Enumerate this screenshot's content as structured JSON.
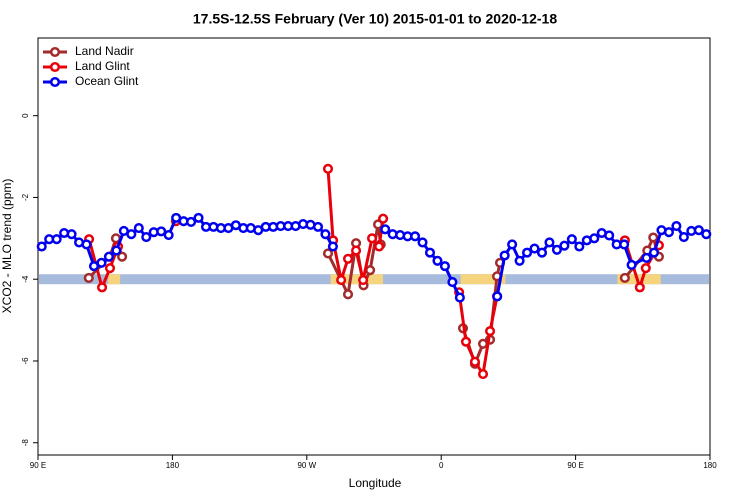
{
  "chart_data": {
    "type": "line",
    "title": "17.5S-12.5S February (Ver 10)   2015-01-01 to 2020-12-18",
    "xlabel": "Longitude",
    "ylabel": "XCO2 - MLO trend (ppm)",
    "xlim": [
      90,
      540
    ],
    "xticks": [
      {
        "value": 90,
        "label": "90 E"
      },
      180,
      {
        "value": 270,
        "label": "90 W"
      },
      {
        "value": 360,
        "label": "0"
      },
      {
        "value": 450,
        "label": "90 E"
      },
      {
        "value": 540,
        "label": "180"
      }
    ],
    "ylim": [
      -8.3,
      1.9
    ],
    "yticks": [
      0,
      -2,
      -4,
      -6,
      -8
    ],
    "legend": "upper left",
    "band_level": -4,
    "band_color": "#a7bbdc",
    "land_color": "#f6d47e",
    "land_ranges": [
      [
        137,
        145
      ],
      [
        286,
        321
      ],
      [
        373,
        403
      ],
      [
        478,
        507
      ]
    ],
    "series": [
      {
        "name": "Land Nadir",
        "color": "#a32b2b",
        "x": [
          124,
          138.2,
          142.2,
          146.3,
          null,
          284.2,
          297.6,
          303,
          308,
          312.4,
          317.7,
          319.5,
          null,
          374.6,
          382.6,
          388,
          392.7,
          397.4,
          399.4,
          null,
          483,
          498,
          502,
          505.8
        ],
        "values": [
          -3.97,
          -3.45,
          -3.0,
          -3.45,
          null,
          -3.37,
          -4.37,
          -3.12,
          -4.15,
          -3.78,
          -2.66,
          -3.15,
          null,
          -5.2,
          -6.07,
          -5.58,
          -5.48,
          -3.93,
          -3.6,
          null,
          -3.97,
          -3.3,
          -2.98,
          -3.45
        ]
      },
      {
        "name": "Land Glint",
        "color": "#e8000b",
        "x": [
          124.2,
          132.9,
          138.2,
          143.6,
          null,
          182.4,
          null,
          284.2,
          287.6,
          293,
          297.6,
          303,
          307.7,
          313.7,
          318.4,
          321.1,
          null,
          372,
          376.6,
          382.6,
          388,
          392.7,
          397.4,
          null,
          483,
          493,
          497,
          505.8
        ],
        "values": [
          -3.02,
          -4.2,
          -3.73,
          -3.2,
          null,
          -2.58,
          null,
          -1.3,
          -3.05,
          -4.02,
          -3.5,
          -3.3,
          -4.02,
          -3.0,
          -3.2,
          -2.52,
          null,
          -4.32,
          -5.53,
          -6.02,
          -6.32,
          -5.27,
          -4.42,
          null,
          -3.05,
          -4.2,
          -3.73,
          -3.17
        ]
      },
      {
        "name": "Ocean Glint",
        "color": "#0000ee",
        "x": [
          92.5,
          97.5,
          102.5,
          107.5,
          112.5,
          117.5,
          122.5,
          127.5,
          132.5,
          137.5,
          142.5,
          147.5,
          152.5,
          157.5,
          162.5,
          167.5,
          172.5,
          177.5,
          182.5,
          187.5,
          192.5,
          197.5,
          202.5,
          207.5,
          212.5,
          217.5,
          222.5,
          227.5,
          232.5,
          237.5,
          242.5,
          247.5,
          252.5,
          257.5,
          262.5,
          267.5,
          272.5,
          277.5,
          282.5,
          287.5,
          null,
          322.5,
          327.5,
          332.5,
          337.5,
          342.5,
          347.5,
          352.5,
          357.5,
          362.5,
          367.5,
          372.5,
          null,
          397.5,
          402.5,
          407.5,
          412.5,
          417.5,
          422.5,
          427.5,
          432.5,
          437.5,
          442.5,
          447.5,
          452.5,
          457.5,
          462.5,
          467.5,
          472.5,
          477.5,
          482.5,
          487.5,
          497.5,
          502.5,
          507.5,
          512.5,
          517.5,
          522.5,
          527.5,
          532.5,
          537.5
        ],
        "values": [
          -3.2,
          -3.02,
          -3.02,
          -2.87,
          -2.9,
          -3.1,
          -3.15,
          -3.68,
          -3.6,
          -3.45,
          -3.3,
          -2.82,
          -2.9,
          -2.75,
          -2.97,
          -2.85,
          -2.83,
          -2.92,
          -2.5,
          -2.58,
          -2.6,
          -2.5,
          -2.72,
          -2.72,
          -2.75,
          -2.75,
          -2.68,
          -2.75,
          -2.75,
          -2.8,
          -2.72,
          -2.72,
          -2.7,
          -2.7,
          -2.7,
          -2.65,
          -2.67,
          -2.72,
          -2.9,
          -3.2,
          null,
          -2.78,
          -2.9,
          -2.92,
          -2.95,
          -2.95,
          -3.1,
          -3.35,
          -3.55,
          -3.68,
          -4.07,
          -4.45,
          null,
          -4.42,
          -3.42,
          -3.15,
          -3.55,
          -3.35,
          -3.25,
          -3.35,
          -3.1,
          -3.28,
          -3.18,
          -3.02,
          -3.2,
          -3.05,
          -3.0,
          -2.87,
          -2.93,
          -3.15,
          -3.15,
          -3.65,
          -3.48,
          -3.35,
          -2.8,
          -2.85,
          -2.7,
          -2.97,
          -2.82,
          -2.8,
          -2.9
        ]
      }
    ]
  }
}
